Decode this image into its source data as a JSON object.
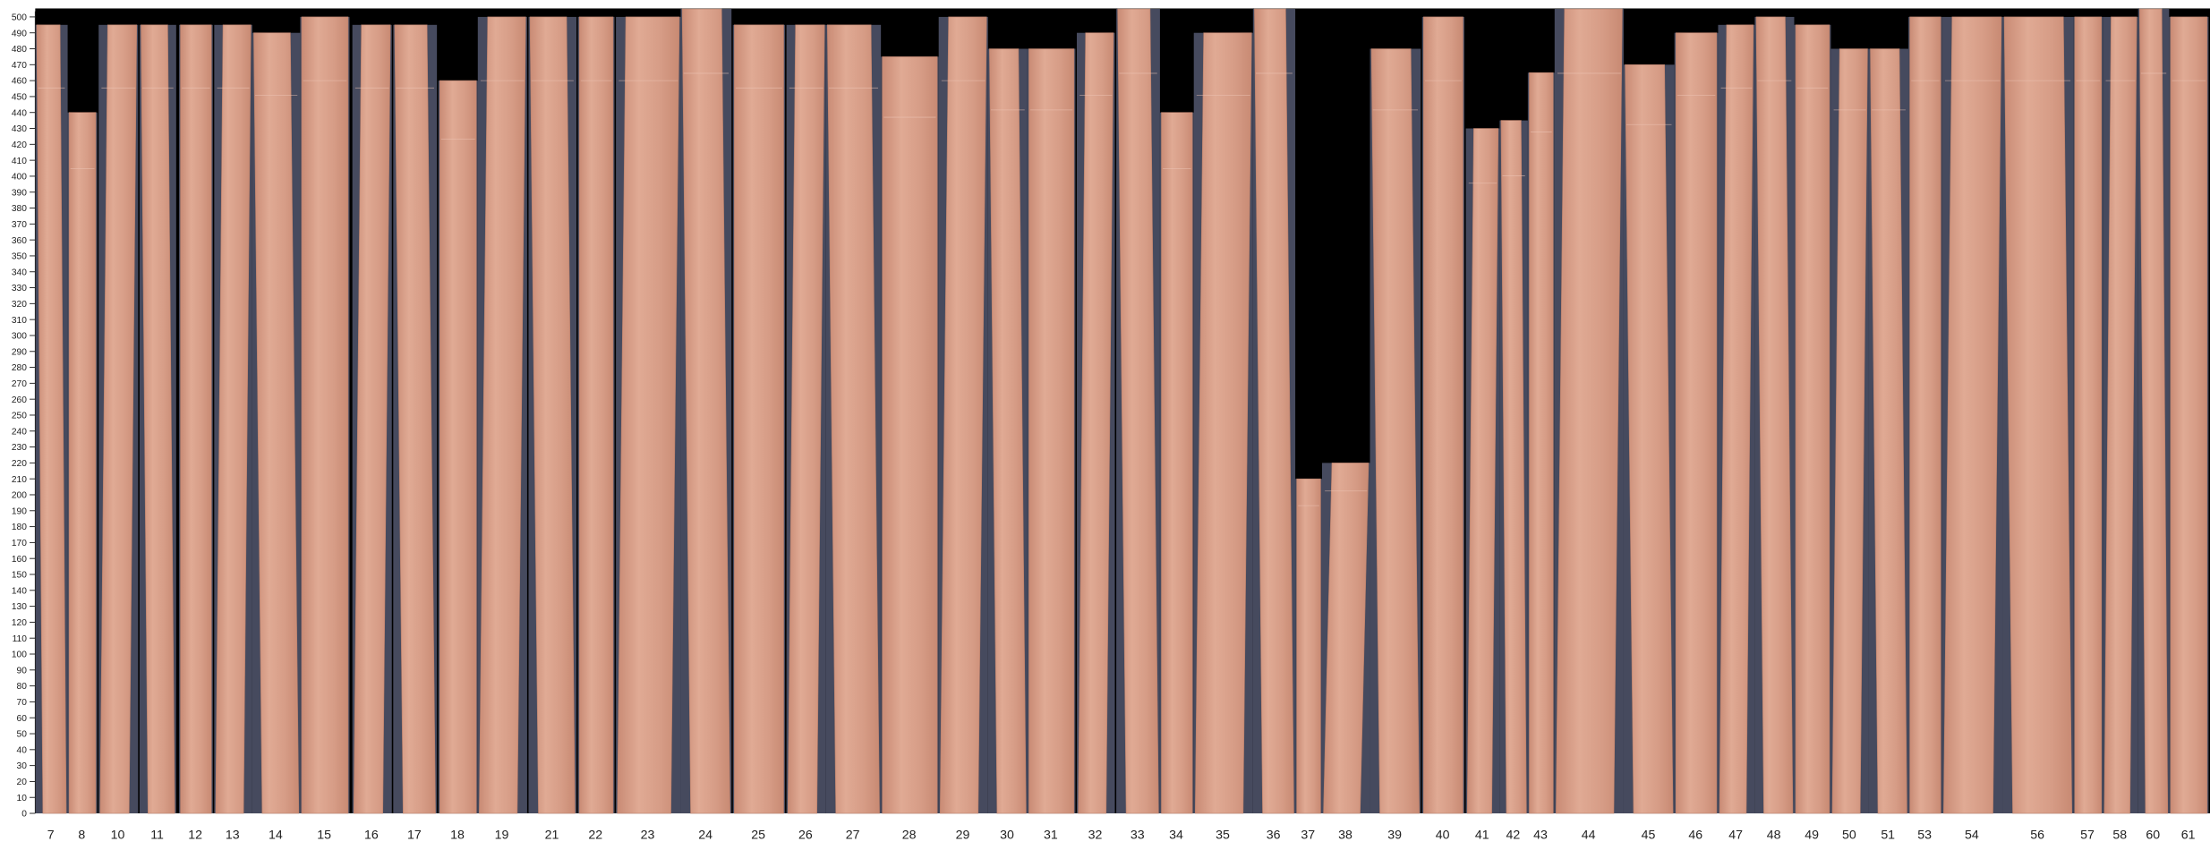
{
  "chart_data": {
    "type": "bar",
    "title": "",
    "xlabel": "",
    "ylabel": "",
    "ylim": [
      0,
      500
    ],
    "ytick_step": 10,
    "grid": false,
    "categories": [
      "7",
      "8",
      "10",
      "11",
      "12",
      "13",
      "14",
      "15",
      "16",
      "17",
      "18",
      "19",
      "21",
      "22",
      "23",
      "24",
      "25",
      "26",
      "27",
      "28",
      "29",
      "30",
      "31",
      "32",
      "33",
      "34",
      "35",
      "36",
      "37",
      "38",
      "39",
      "40",
      "41",
      "42",
      "43",
      "44",
      "45",
      "46",
      "47",
      "48",
      "49",
      "50",
      "51",
      "53",
      "54",
      "56",
      "57",
      "58",
      "60",
      "61"
    ],
    "values": [
      495,
      440,
      495,
      495,
      495,
      495,
      490,
      500,
      495,
      495,
      460,
      500,
      500,
      500,
      500,
      505,
      495,
      495,
      495,
      475,
      500,
      480,
      480,
      490,
      505,
      440,
      490,
      505,
      210,
      220,
      480,
      500,
      430,
      435,
      465,
      505,
      470,
      490,
      495,
      500,
      495,
      480,
      480,
      500,
      500,
      500,
      500,
      500,
      505,
      500
    ],
    "colors": {
      "background": "#000000",
      "gap": "#464a5e",
      "bar": "#d9a08a",
      "bar_dark": "#c98b75"
    }
  }
}
